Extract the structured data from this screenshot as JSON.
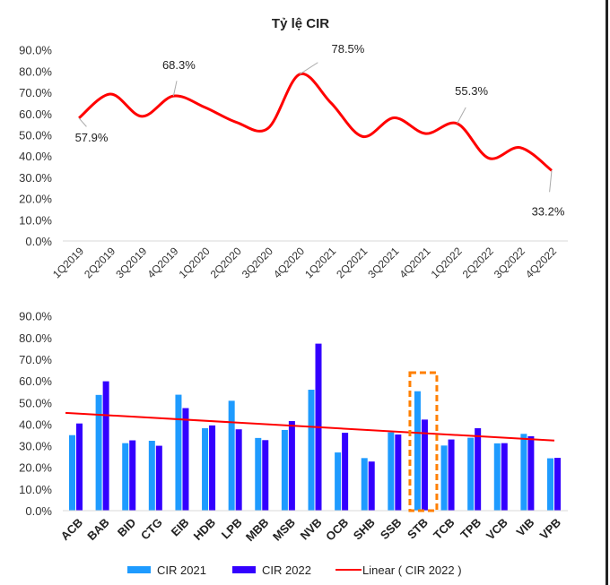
{
  "chart_data": [
    {
      "type": "line",
      "title": "Tỷ lệ CIR",
      "categories": [
        "1Q2019",
        "2Q2019",
        "3Q2019",
        "4Q2019",
        "1Q2020",
        "2Q2020",
        "3Q2020",
        "4Q2020",
        "1Q2021",
        "2Q2021",
        "3Q2021",
        "4Q2021",
        "1Q2022",
        "2Q2022",
        "3Q2022",
        "4Q2022"
      ],
      "values": [
        57.9,
        69.2,
        58.7,
        68.3,
        62.9,
        55.9,
        53.1,
        78.5,
        65.0,
        49.2,
        58.0,
        50.6,
        55.3,
        39.0,
        44.0,
        33.2
      ],
      "data_labels": {
        "0": "57.9%",
        "3": "68.3%",
        "7": "78.5%",
        "12": "55.3%",
        "15": "33.2%"
      },
      "yticks": [
        "0.0%",
        "10.0%",
        "20.0%",
        "30.0%",
        "40.0%",
        "50.0%",
        "60.0%",
        "70.0%",
        "80.0%",
        "90.0%"
      ],
      "ylim": [
        0,
        90
      ],
      "line_color": "#ff0000",
      "smooth": true,
      "grid": false
    },
    {
      "type": "bar",
      "categories": [
        "ACB",
        "BAB",
        "BID",
        "CTG",
        "EIB",
        "HDB",
        "LPB",
        "MBB",
        "MSB",
        "NVB",
        "OCB",
        "SHB",
        "SSB",
        "STB",
        "TCB",
        "TPB",
        "VCB",
        "VIB",
        "VPB"
      ],
      "series": [
        {
          "name": "CIR 2021",
          "color": "#1e9bff",
          "values": [
            34.9,
            53.5,
            31.2,
            32.3,
            53.6,
            38.1,
            50.8,
            33.6,
            37.3,
            55.9,
            26.9,
            24.3,
            36.2,
            55.2,
            30.1,
            33.7,
            31.1,
            35.5,
            24.2
          ]
        },
        {
          "name": "CIR 2022",
          "color": "#3300ff",
          "values": [
            40.3,
            59.8,
            32.5,
            30.0,
            47.4,
            39.4,
            37.6,
            32.6,
            41.4,
            77.2,
            36.0,
            22.7,
            35.2,
            42.1,
            32.9,
            38.1,
            31.2,
            34.4,
            24.4
          ]
        }
      ],
      "trendline": {
        "name": "Linear ( CIR 2022 )",
        "color": "#ff0000",
        "start": 45.2,
        "end": 32.4
      },
      "highlight": {
        "category": "STB",
        "color": "#ff7f00",
        "style": "dashed"
      },
      "yticks": [
        "0.0%",
        "10.0%",
        "20.0%",
        "30.0%",
        "40.0%",
        "50.0%",
        "60.0%",
        "70.0%",
        "80.0%",
        "90.0%"
      ],
      "ylim": [
        0,
        90
      ],
      "legend": "bottom",
      "grid": false
    }
  ]
}
